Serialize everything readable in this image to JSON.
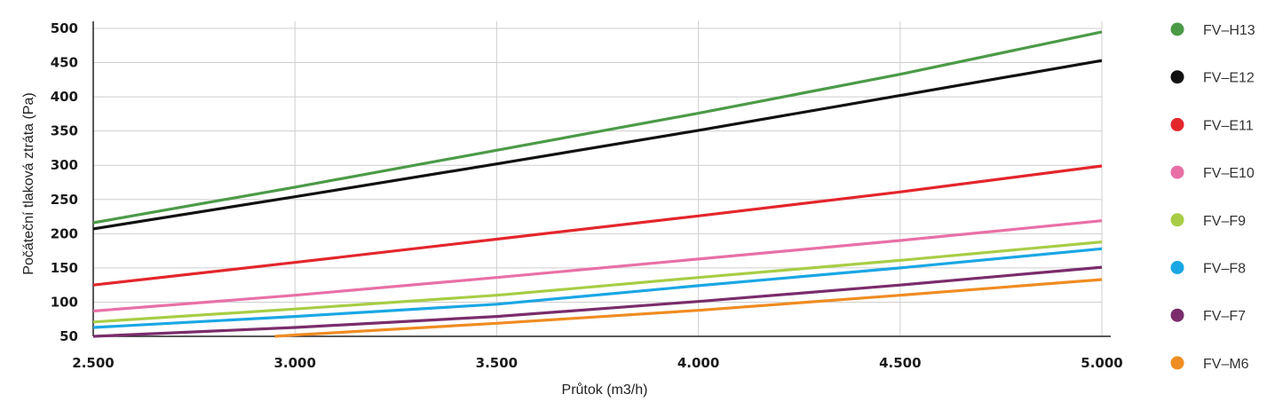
{
  "chart_data": {
    "type": "line",
    "xlabel": "Průtok (m3/h)",
    "ylabel": "Počáteční tlaková ztráta (Pa)",
    "xlim": [
      2500,
      5000
    ],
    "ylim": [
      50,
      500
    ],
    "x_ticks": [
      2500,
      3000,
      3500,
      4000,
      4500,
      5000
    ],
    "x_tick_labels": [
      "2.500",
      "3.000",
      "3.500",
      "4.000",
      "4.500",
      "5.000"
    ],
    "y_ticks": [
      50,
      100,
      150,
      200,
      250,
      300,
      350,
      400,
      450,
      500
    ],
    "y_tick_labels": [
      "50",
      "100",
      "150",
      "200",
      "250",
      "300",
      "350",
      "400",
      "450",
      "500"
    ],
    "grid": true,
    "legend_position": "right",
    "series": [
      {
        "name": "FV–H13",
        "color": "#4c9a48",
        "x": [
          2500,
          3000,
          3500,
          4000,
          4500,
          5000
        ],
        "y": [
          216,
          268,
          322,
          376,
          433,
          495
        ]
      },
      {
        "name": "FV–E12",
        "color": "#111111",
        "x": [
          2500,
          3000,
          3500,
          4000,
          4500,
          5000
        ],
        "y": [
          207,
          254,
          302,
          351,
          402,
          453
        ]
      },
      {
        "name": "FV–E11",
        "color": "#e3262c",
        "x": [
          2500,
          3000,
          3500,
          4000,
          4500,
          5000
        ],
        "y": [
          125,
          158,
          192,
          226,
          261,
          299
        ]
      },
      {
        "name": "FV–E10",
        "color": "#e870a6",
        "x": [
          2500,
          3000,
          3500,
          4000,
          4500,
          5000
        ],
        "y": [
          87,
          110,
          136,
          163,
          190,
          219
        ]
      },
      {
        "name": "FV–F9",
        "color": "#a8cd45",
        "x": [
          2500,
          3000,
          3500,
          4000,
          4500,
          5000
        ],
        "y": [
          71,
          90,
          110,
          136,
          161,
          188
        ]
      },
      {
        "name": "FV–F8",
        "color": "#1aa7e4",
        "x": [
          2500,
          3000,
          3500,
          4000,
          4500,
          5000
        ],
        "y": [
          63,
          79,
          97,
          124,
          150,
          178
        ]
      },
      {
        "name": "FV–F7",
        "color": "#7a2c6b",
        "x": [
          2500,
          3000,
          3500,
          4000,
          4500,
          5000
        ],
        "y": [
          50,
          63,
          79,
          101,
          125,
          151
        ]
      },
      {
        "name": "FV–M6",
        "color": "#ef8c22",
        "x": [
          2950,
          3000,
          3500,
          4000,
          4500,
          5000
        ],
        "y": [
          50,
          52,
          69,
          88,
          110,
          133
        ]
      }
    ]
  }
}
